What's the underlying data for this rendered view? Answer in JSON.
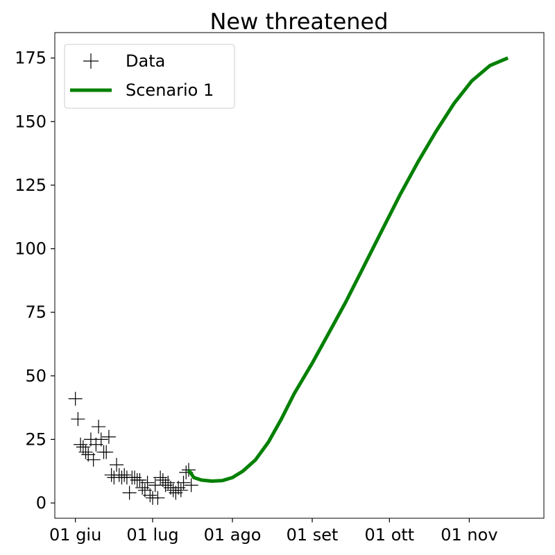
{
  "chart_data": {
    "type": "line",
    "title": "New threatened",
    "xlabel": "",
    "ylabel": "",
    "x_tick_labels": [
      "01 giu",
      "01 lug",
      "01 ago",
      "01 set",
      "01 ott",
      "01 nov"
    ],
    "x_tick_dates": [
      "2020-06-01",
      "2020-07-01",
      "2020-08-01",
      "2020-09-01",
      "2020-10-01",
      "2020-11-01"
    ],
    "y_ticks": [
      0,
      25,
      50,
      75,
      100,
      125,
      150,
      175
    ],
    "xlim": [
      "2020-05-24",
      "2020-11-30"
    ],
    "ylim": [
      -6,
      185
    ],
    "grid": false,
    "legend_position": "top-left",
    "series": [
      {
        "name": "Data",
        "kind": "scatter",
        "marker": "plus",
        "color": "#000000",
        "x": [
          "2020-06-01",
          "2020-06-02",
          "2020-06-03",
          "2020-06-04",
          "2020-06-05",
          "2020-06-06",
          "2020-06-07",
          "2020-06-08",
          "2020-06-09",
          "2020-06-10",
          "2020-06-11",
          "2020-06-12",
          "2020-06-13",
          "2020-06-14",
          "2020-06-15",
          "2020-06-16",
          "2020-06-17",
          "2020-06-18",
          "2020-06-19",
          "2020-06-20",
          "2020-06-21",
          "2020-06-22",
          "2020-06-23",
          "2020-06-24",
          "2020-06-25",
          "2020-06-26",
          "2020-06-27",
          "2020-06-28",
          "2020-06-29",
          "2020-06-30",
          "2020-07-01",
          "2020-07-02",
          "2020-07-03",
          "2020-07-04",
          "2020-07-05",
          "2020-07-06",
          "2020-07-07",
          "2020-07-08",
          "2020-07-09",
          "2020-07-10",
          "2020-07-11",
          "2020-07-12",
          "2020-07-13",
          "2020-07-14",
          "2020-07-15",
          "2020-07-16"
        ],
        "y": [
          41,
          33,
          23,
          22,
          20,
          19,
          25,
          17,
          23,
          30,
          25,
          20,
          20,
          26,
          11,
          10,
          15,
          11,
          10,
          11,
          10,
          4,
          10,
          10,
          9,
          9,
          6,
          5,
          8,
          3,
          2,
          7,
          2,
          10,
          9,
          7,
          8,
          6,
          5,
          4,
          6,
          5,
          8,
          12,
          13,
          7
        ]
      },
      {
        "name": "Scenario 1",
        "kind": "line",
        "color": "#008000",
        "x": [
          "2020-07-15",
          "2020-07-17",
          "2020-07-20",
          "2020-07-24",
          "2020-07-28",
          "2020-08-01",
          "2020-08-05",
          "2020-08-10",
          "2020-08-15",
          "2020-08-20",
          "2020-08-25",
          "2020-09-01",
          "2020-09-07",
          "2020-09-14",
          "2020-09-21",
          "2020-09-28",
          "2020-10-05",
          "2020-10-12",
          "2020-10-19",
          "2020-10-26",
          "2020-11-02",
          "2020-11-09",
          "2020-11-16"
        ],
        "y": [
          13,
          10,
          9,
          8.6,
          8.8,
          10,
          12.5,
          17,
          24,
          33,
          43,
          55,
          66,
          79,
          93,
          107,
          121,
          134,
          146,
          157,
          166,
          172,
          175
        ]
      }
    ]
  }
}
